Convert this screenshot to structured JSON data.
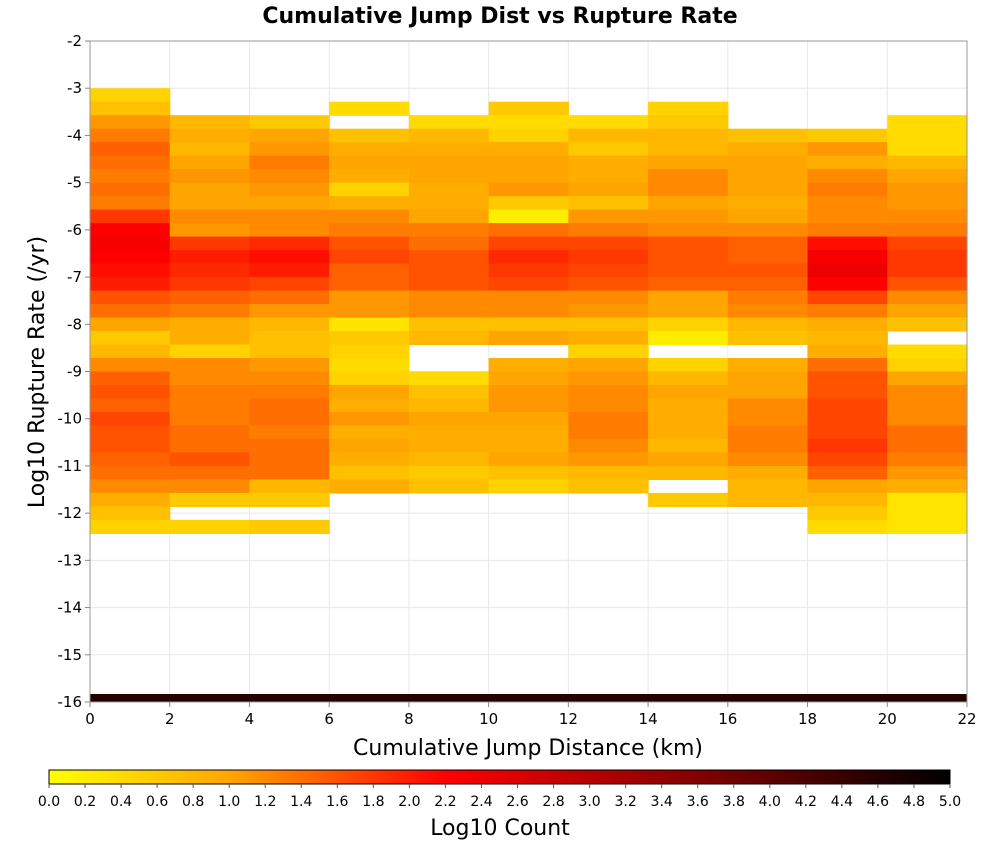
{
  "chart_data": {
    "type": "heatmap",
    "title": "Cumulative Jump Dist vs Rupture Rate",
    "xlabel": "Cumulative Jump Distance (km)",
    "ylabel": "Log10 Rupture Rate (/yr)",
    "xlim": [
      0,
      22
    ],
    "ylim": [
      -16,
      -2
    ],
    "x_ticks": [
      "0",
      "2",
      "4",
      "6",
      "8",
      "10",
      "12",
      "14",
      "16",
      "18",
      "20",
      "22"
    ],
    "y_ticks": [
      "-2",
      "-3",
      "-4",
      "-5",
      "-6",
      "-7",
      "-8",
      "-9",
      "-10",
      "-11",
      "-12",
      "-13",
      "-14",
      "-15",
      "-16"
    ],
    "x_bin_edges": [
      0,
      2,
      4,
      6,
      8,
      10,
      12,
      14,
      16,
      18,
      20,
      22
    ],
    "y_bin_top": -3.0,
    "y_bin_size": 0.2857,
    "colorbar": {
      "label": "Log10 Count",
      "range": [
        0,
        5
      ],
      "ticks": [
        "0.0",
        "0.2",
        "0.4",
        "0.6",
        "0.8",
        "1.0",
        "1.2",
        "1.4",
        "1.6",
        "1.8",
        "2.0",
        "2.2",
        "2.4",
        "2.6",
        "2.8",
        "3.0",
        "3.2",
        "3.4",
        "3.6",
        "3.8",
        "4.0",
        "4.2",
        "4.4",
        "4.6",
        "4.8",
        "5.0"
      ],
      "colormap": [
        "#ffff00",
        "#ffa500",
        "#ff0000",
        "#8b0000",
        "#000000"
      ]
    },
    "columns": [
      {
        "x_range": [
          0,
          2
        ],
        "values": [
          0.5,
          0.7,
          1.1,
          1.3,
          1.5,
          1.4,
          1.3,
          1.4,
          1.3,
          1.8,
          2.2,
          2.3,
          2.2,
          2.1,
          2.0,
          1.6,
          1.4,
          1.0,
          0.6,
          0.8,
          1.2,
          1.5,
          1.6,
          1.5,
          1.7,
          1.6,
          1.6,
          1.5,
          1.4,
          1.2,
          0.9,
          0.7,
          0.5
        ]
      },
      {
        "x_range": [
          2,
          4
        ],
        "values": [
          null,
          null,
          0.8,
          0.9,
          0.8,
          1.0,
          1.1,
          1.0,
          1.0,
          1.2,
          1.1,
          1.8,
          2.0,
          1.9,
          1.8,
          1.5,
          1.3,
          0.9,
          0.9,
          0.5,
          1.2,
          1.2,
          1.3,
          1.3,
          1.3,
          1.4,
          1.4,
          1.6,
          1.4,
          1.2,
          0.6,
          null,
          0.5
        ]
      },
      {
        "x_range": [
          4,
          6
        ],
        "values": [
          null,
          null,
          0.6,
          1.0,
          1.1,
          1.3,
          1.2,
          1.1,
          1.0,
          1.2,
          1.2,
          1.9,
          2.1,
          2.0,
          1.7,
          1.4,
          1.1,
          0.8,
          0.7,
          0.7,
          1.1,
          1.2,
          1.3,
          1.4,
          1.4,
          1.3,
          1.4,
          1.4,
          1.4,
          0.8,
          0.6,
          null,
          0.6
        ]
      },
      {
        "x_range": [
          6,
          8
        ],
        "values": [
          null,
          0.4,
          null,
          0.7,
          0.9,
          1.0,
          0.9,
          0.5,
          0.9,
          1.2,
          1.3,
          1.6,
          1.7,
          1.5,
          1.5,
          1.1,
          1.1,
          0.3,
          0.6,
          0.5,
          0.4,
          0.5,
          1.0,
          0.9,
          1.1,
          0.9,
          1.0,
          0.9,
          0.7,
          0.9,
          null,
          null,
          null
        ]
      },
      {
        "x_range": [
          8,
          10
        ],
        "values": [
          null,
          null,
          0.4,
          0.8,
          0.9,
          1.0,
          1.0,
          0.9,
          0.9,
          1.0,
          1.3,
          1.4,
          1.6,
          1.6,
          1.6,
          1.2,
          1.2,
          0.7,
          0.8,
          null,
          null,
          0.4,
          0.7,
          0.8,
          1.0,
          0.9,
          0.9,
          0.8,
          0.6,
          0.7,
          null,
          null,
          null
        ]
      },
      {
        "x_range": [
          10,
          12
        ],
        "values": [
          null,
          0.6,
          0.4,
          0.5,
          0.9,
          1.0,
          1.0,
          1.1,
          0.6,
          0.2,
          1.4,
          1.7,
          1.9,
          1.8,
          1.7,
          1.2,
          1.2,
          0.7,
          1.0,
          null,
          0.9,
          1.0,
          1.1,
          1.1,
          1.0,
          0.9,
          0.9,
          1.0,
          0.7,
          0.5,
          null,
          null,
          null
        ]
      },
      {
        "x_range": [
          12,
          14
        ],
        "values": [
          null,
          null,
          0.4,
          0.8,
          0.6,
          0.9,
          0.9,
          1.0,
          0.7,
          1.1,
          1.3,
          1.7,
          1.8,
          1.7,
          1.6,
          1.2,
          1.1,
          0.7,
          0.9,
          0.5,
          1.0,
          1.1,
          1.2,
          1.2,
          1.3,
          1.3,
          1.2,
          1.1,
          0.8,
          0.7,
          null,
          null,
          null
        ]
      },
      {
        "x_range": [
          14,
          16
        ],
        "values": [
          null,
          0.5,
          0.6,
          0.8,
          0.8,
          1.0,
          1.2,
          1.2,
          1.0,
          1.1,
          1.2,
          1.6,
          1.6,
          1.6,
          1.5,
          1.0,
          1.0,
          0.5,
          0.2,
          null,
          0.5,
          0.8,
          1.0,
          0.9,
          0.9,
          0.9,
          0.8,
          1.0,
          0.8,
          null,
          0.6,
          null,
          null
        ]
      },
      {
        "x_range": [
          16,
          18
        ],
        "values": [
          null,
          null,
          null,
          0.7,
          0.9,
          1.0,
          1.0,
          1.0,
          0.9,
          1.0,
          1.2,
          1.5,
          1.5,
          1.6,
          1.5,
          1.3,
          1.2,
          0.8,
          0.7,
          null,
          0.9,
          1.0,
          1.0,
          1.2,
          1.2,
          1.3,
          1.3,
          1.2,
          0.9,
          0.8,
          0.8,
          null,
          null
        ]
      },
      {
        "x_range": [
          18,
          20
        ],
        "values": [
          null,
          null,
          null,
          0.6,
          1.1,
          0.9,
          1.2,
          1.3,
          1.2,
          1.2,
          1.3,
          2.1,
          2.3,
          2.4,
          2.2,
          1.7,
          1.3,
          0.9,
          0.8,
          0.9,
          1.4,
          1.6,
          1.6,
          1.7,
          1.7,
          1.7,
          1.8,
          1.7,
          1.5,
          1.0,
          0.8,
          0.6,
          0.4
        ]
      },
      {
        "x_range": [
          20,
          22
        ],
        "values": [
          null,
          null,
          0.4,
          0.4,
          0.4,
          0.8,
          1.0,
          1.1,
          1.1,
          1.2,
          1.3,
          1.7,
          1.8,
          1.8,
          1.6,
          1.2,
          1.0,
          0.7,
          null,
          0.4,
          0.5,
          1.0,
          1.2,
          1.2,
          1.2,
          1.4,
          1.4,
          1.3,
          1.1,
          0.9,
          0.3,
          0.3,
          0.3
        ]
      }
    ],
    "bottom_band": {
      "y": -16,
      "x_range": [
        0,
        22
      ],
      "value": 4.6
    }
  }
}
